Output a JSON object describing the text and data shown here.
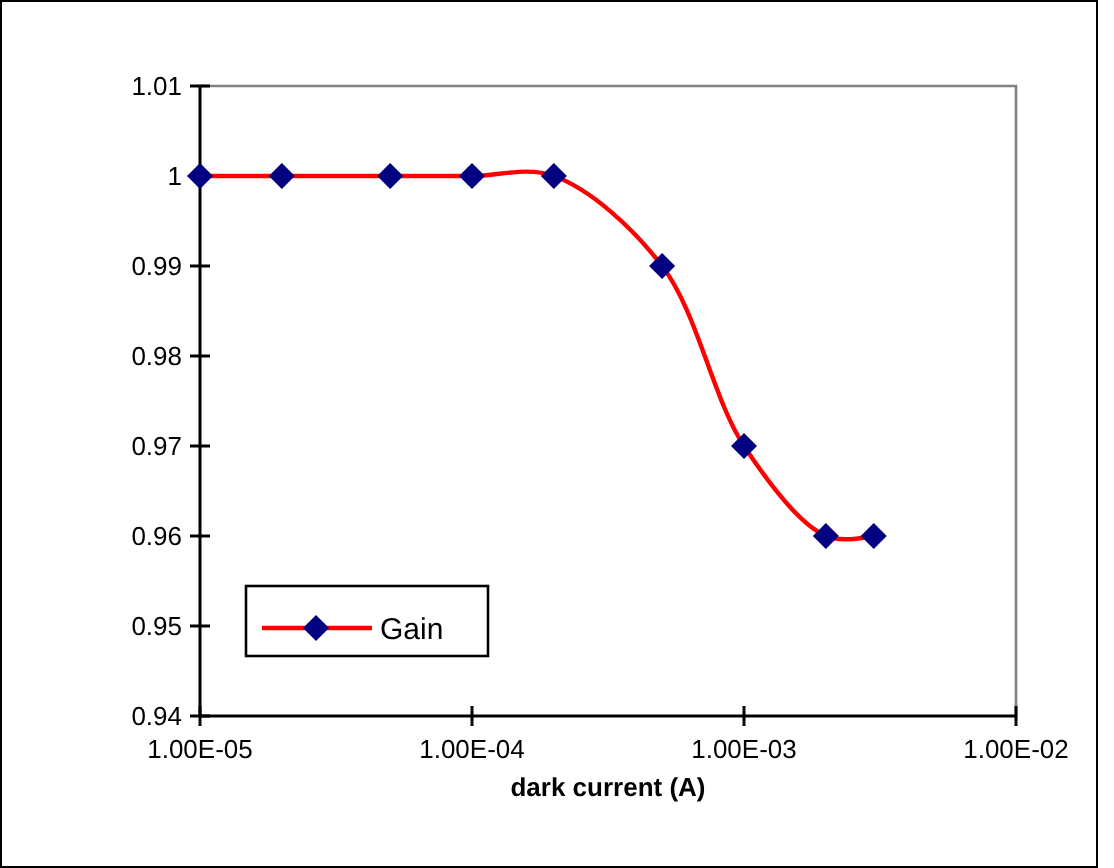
{
  "chart_data": {
    "type": "line",
    "xlabel": "dark current (A)",
    "log": "x",
    "x": [
      1e-05,
      2e-05,
      5e-05,
      0.0001,
      0.0002,
      0.0005,
      0.001,
      0.002,
      0.003
    ],
    "series": [
      {
        "name": "Gain",
        "color": "#ff0000",
        "values": [
          1,
          1,
          1,
          1,
          1,
          0.99,
          0.97,
          0.96,
          0.96
        ]
      }
    ],
    "marker": "diamond",
    "line_style": "solid",
    "legend": "bottom left",
    "grid": false,
    "xlim": [
      1e-05,
      0.01
    ],
    "ylim": [
      0.94,
      1.01
    ],
    "xticks": [
      {
        "value": 1e-05,
        "label": "1.00E-05"
      },
      {
        "value": 0.0001,
        "label": "1.00E-04"
      },
      {
        "value": 0.001,
        "label": "1.00E-03"
      },
      {
        "value": 0.01,
        "label": "1.00E-02"
      }
    ],
    "yticks": [
      0.94,
      0.95,
      0.96,
      0.97,
      0.98,
      0.99,
      1,
      1.01
    ]
  }
}
